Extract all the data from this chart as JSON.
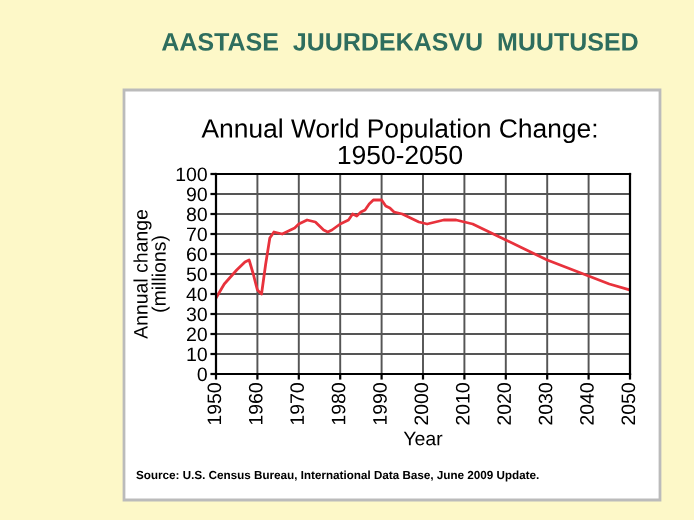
{
  "chart_data": {
    "type": "line",
    "title": "AASTASE  JUURDEKASVU  MUUTUSED",
    "subtitle": "Annual World Population Change:\n1950-2050",
    "xlabel": "Year",
    "ylabel": "Annual change\n(millions)",
    "x": [
      1950,
      1952,
      1955,
      1957,
      1958,
      1959,
      1960,
      1961,
      1962,
      1963,
      1964,
      1966,
      1968,
      1969,
      1970,
      1972,
      1974,
      1975,
      1976,
      1977,
      1978,
      1980,
      1982,
      1983,
      1984,
      1985,
      1986,
      1987,
      1988,
      1990,
      1991,
      1992,
      1993,
      1995,
      1997,
      1999,
      2001,
      2003,
      2005,
      2008,
      2010,
      2012,
      2015,
      2020,
      2025,
      2030,
      2035,
      2040,
      2045,
      2050
    ],
    "series": [
      {
        "color": "#e8323c",
        "values": [
          38,
          45,
          52,
          56,
          57,
          50,
          42,
          40,
          55,
          68,
          71,
          70,
          72,
          73,
          75,
          77,
          76,
          74,
          72,
          71,
          72,
          75,
          77,
          80,
          79,
          81,
          82,
          85,
          87,
          87,
          84,
          83,
          81,
          80,
          78,
          76,
          75,
          76,
          77,
          77,
          76,
          75,
          72,
          67,
          62,
          57,
          53,
          49,
          45,
          42
        ]
      }
    ],
    "xlim": [
      1950,
      2050
    ],
    "xticks": [
      1950,
      1960,
      1970,
      1980,
      1990,
      2000,
      2010,
      2020,
      2030,
      2040,
      2050
    ],
    "ylim": [
      0,
      100
    ],
    "yticks": [
      0,
      10,
      20,
      30,
      40,
      50,
      60,
      70,
      80,
      90,
      100
    ],
    "grid": true,
    "marker": "none",
    "line_style": "solid",
    "annotations": [
      "Source: U.S. Census Bureau, International Data Base, June 2009 Update."
    ]
  }
}
